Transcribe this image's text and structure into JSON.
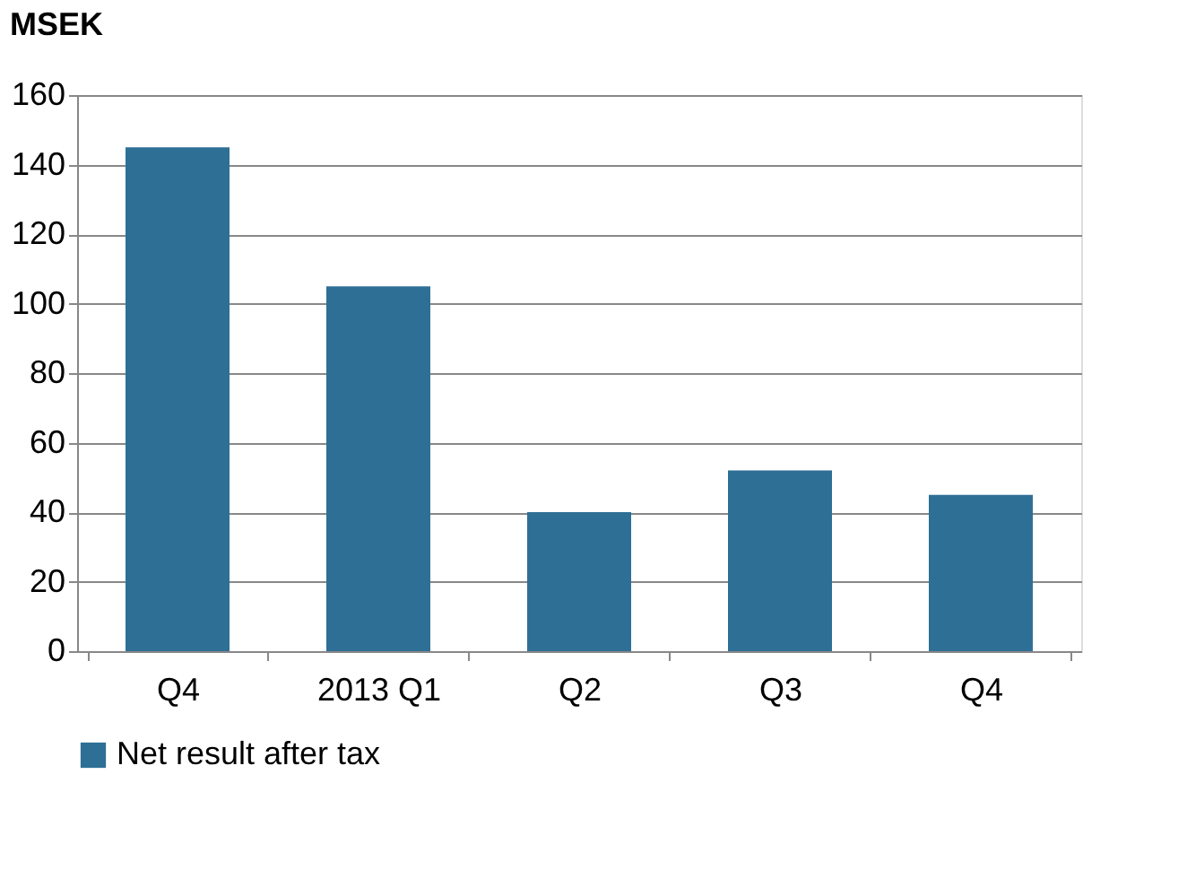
{
  "chart_data": {
    "type": "bar",
    "ylabel": "MSEK",
    "categories": [
      "Q4",
      "2013 Q1",
      "Q2",
      "Q3",
      "Q4"
    ],
    "series": [
      {
        "name": "Net result after tax",
        "color": "#2e6f96",
        "values": [
          145,
          105,
          40,
          52,
          45
        ]
      }
    ],
    "ylim": [
      0,
      160
    ],
    "yticks": [
      0,
      20,
      40,
      60,
      80,
      100,
      120,
      140,
      160
    ],
    "grid": "y",
    "legend": "bottom"
  }
}
